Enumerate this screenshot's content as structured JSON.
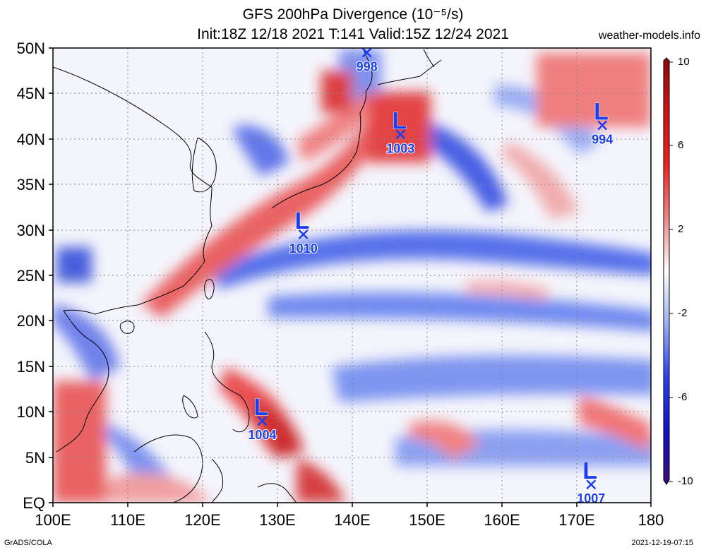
{
  "title": {
    "line1": "GFS 200hPa Divergence (10⁻⁵/s)",
    "line2": "Init:18Z 12/18 2021  T:141  Valid:15Z 12/24 2021"
  },
  "site": "weather-models.info",
  "footer": {
    "left": "GrADS/COLA",
    "right": "2021-12-19-07:15"
  },
  "axes": {
    "lat_labels": [
      "50N",
      "45N",
      "40N",
      "35N",
      "30N",
      "25N",
      "20N",
      "15N",
      "10N",
      "5N",
      "EQ"
    ],
    "lon_labels": [
      "100E",
      "110E",
      "120E",
      "130E",
      "140E",
      "150E",
      "160E",
      "170E",
      "180"
    ],
    "lat_range": [
      0,
      50
    ],
    "lon_range": [
      100,
      180
    ]
  },
  "colorbar": {
    "labels": [
      "10",
      "6",
      "2",
      "-2",
      "-6",
      "-10"
    ],
    "range": [
      -10,
      10
    ],
    "colors": [
      "#3a0a7a",
      "#1010e0",
      "#4a6ef0",
      "#9fb3f5",
      "#ffffff",
      "#f5a8a8",
      "#f05050",
      "#e01010",
      "#8a0a0a"
    ]
  },
  "lows": [
    {
      "label": "998",
      "lon": 142,
      "lat": 49.5
    },
    {
      "label": "1003",
      "lon": 146.5,
      "lat": 40.5
    },
    {
      "label": "994",
      "lon": 173.5,
      "lat": 41.5
    },
    {
      "label": "1010",
      "lon": 133.5,
      "lat": 29.5
    },
    {
      "label": "1004",
      "lon": 128,
      "lat": 9
    },
    {
      "label": "1007",
      "lon": 172,
      "lat": 2
    }
  ],
  "low_marker": "L",
  "colors": {
    "low_marker": "#1a3ef0",
    "positive": "#e02020",
    "negative": "#2040e0"
  }
}
